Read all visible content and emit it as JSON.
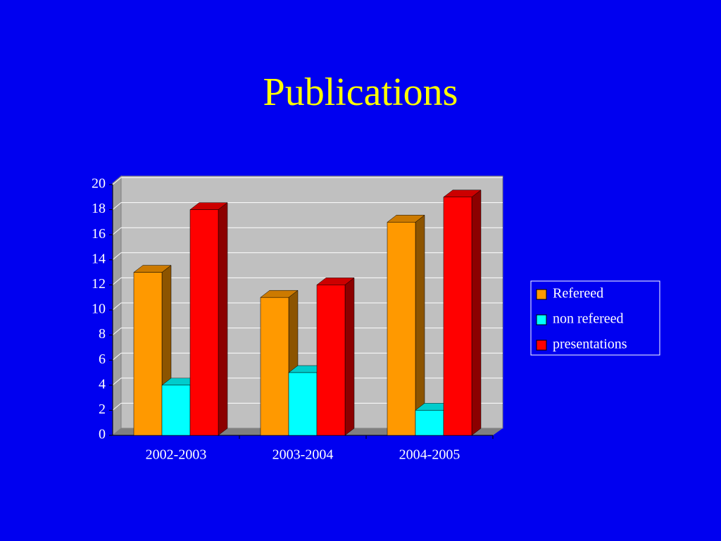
{
  "chart_data": {
    "type": "bar3d",
    "title": "Publications",
    "categories": [
      "2002-2003",
      "2003-2004",
      "2004-2005"
    ],
    "series": [
      {
        "name": "Refereed",
        "color": "#ff9900",
        "values": [
          13,
          11,
          17
        ]
      },
      {
        "name": "non refereed",
        "color": "#00ffff",
        "values": [
          4,
          5,
          2
        ]
      },
      {
        "name": "presentations",
        "color": "#ff0000",
        "values": [
          18,
          12,
          19
        ]
      }
    ],
    "ylim": [
      0,
      20
    ],
    "yticks": [
      0,
      2,
      4,
      6,
      8,
      10,
      12,
      14,
      16,
      18,
      20
    ],
    "grid": true,
    "legend": "right"
  }
}
